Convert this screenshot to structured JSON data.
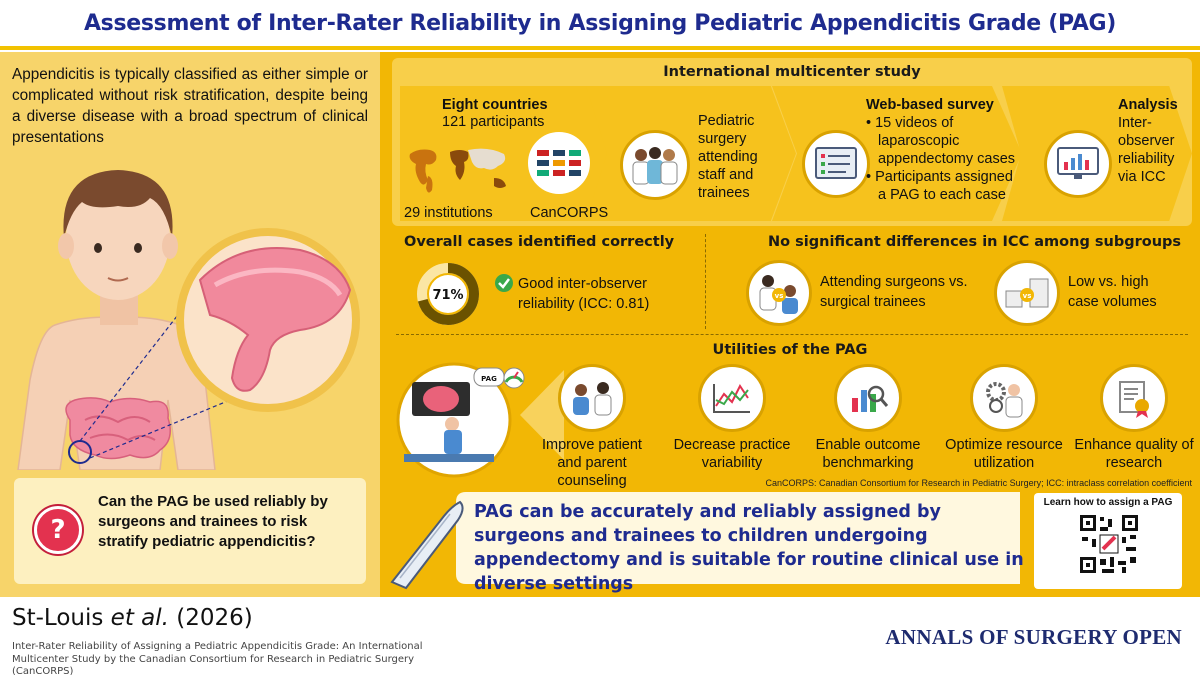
{
  "title": "Assessment of Inter-Rater Reliability in Assigning Pediatric Appendicitis Grade (PAG)",
  "intro": "Appendicitis is typically classified as either simple or complicated without risk stratification, despite being a diverse disease with a broad spectrum of clinical presentations",
  "question": "Can the PAG be used reliably by surgeons and trainees to risk stratify pediatric appendicitis?",
  "study": {
    "header": "International multicenter study",
    "countries_title": "Eight countries",
    "participants": "121 participants",
    "institutions": "29 institutions",
    "cancorps": "CanCORPS",
    "participant_types": "Pediatric surgery attending staff and trainees",
    "survey_title": "Web-based survey",
    "survey_bullets": [
      "15 videos of laparoscopic appendectomy cases",
      "Participants assigned a PAG to each case"
    ],
    "analysis_title": "Analysis",
    "analysis_text": "Inter-observer reliability via ICC"
  },
  "results": {
    "overall_title": "Overall cases identified correctly",
    "percent": "71%",
    "percent_value": 71,
    "reliability": "Good inter-observer reliability (ICC: 0.81)",
    "subgroup_title": "No significant differences in ICC among subgroups",
    "subgroup_1": "Attending surgeons vs. surgical trainees",
    "subgroup_2": "Low vs. high case volumes",
    "vs_label": "vs"
  },
  "utilities": {
    "title": "Utilities of the PAG",
    "pag_label": "PAG",
    "items": [
      "Improve patient and parent counseling",
      "Decrease practice variability",
      "Enable outcome benchmarking",
      "Optimize resource utilization",
      "Enhance quality of research"
    ]
  },
  "footnote": "CanCORPS: Canadian Consortium for Research in Pediatric Surgery; ICC: intraclass correlation coefficient",
  "conclusion": "PAG can be accurately and reliably assigned by surgeons and trainees to children undergoing appendectomy and is suitable for routine clinical use in diverse settings",
  "qr_label": "Learn how to assign a PAG",
  "author": "St-Louis et al. (2026)",
  "author_name": "St-Louis",
  "author_etal": "et al.",
  "author_year": "(2026)",
  "citation": "Inter-Rater Reliability of Assigning a Pediatric Appendicitis Grade: An International Multicenter Study by the Canadian Consortium for Research in Pediatric Surgery (CanCORPS)",
  "journal": "ANNALS OF SURGERY OPEN",
  "colors": {
    "title_blue": "#1e2b8f",
    "panel_yellow": "#f2b705",
    "left_yellow": "#f7d46a",
    "accent_red": "#e3324f",
    "check_green": "#3aa84a"
  }
}
